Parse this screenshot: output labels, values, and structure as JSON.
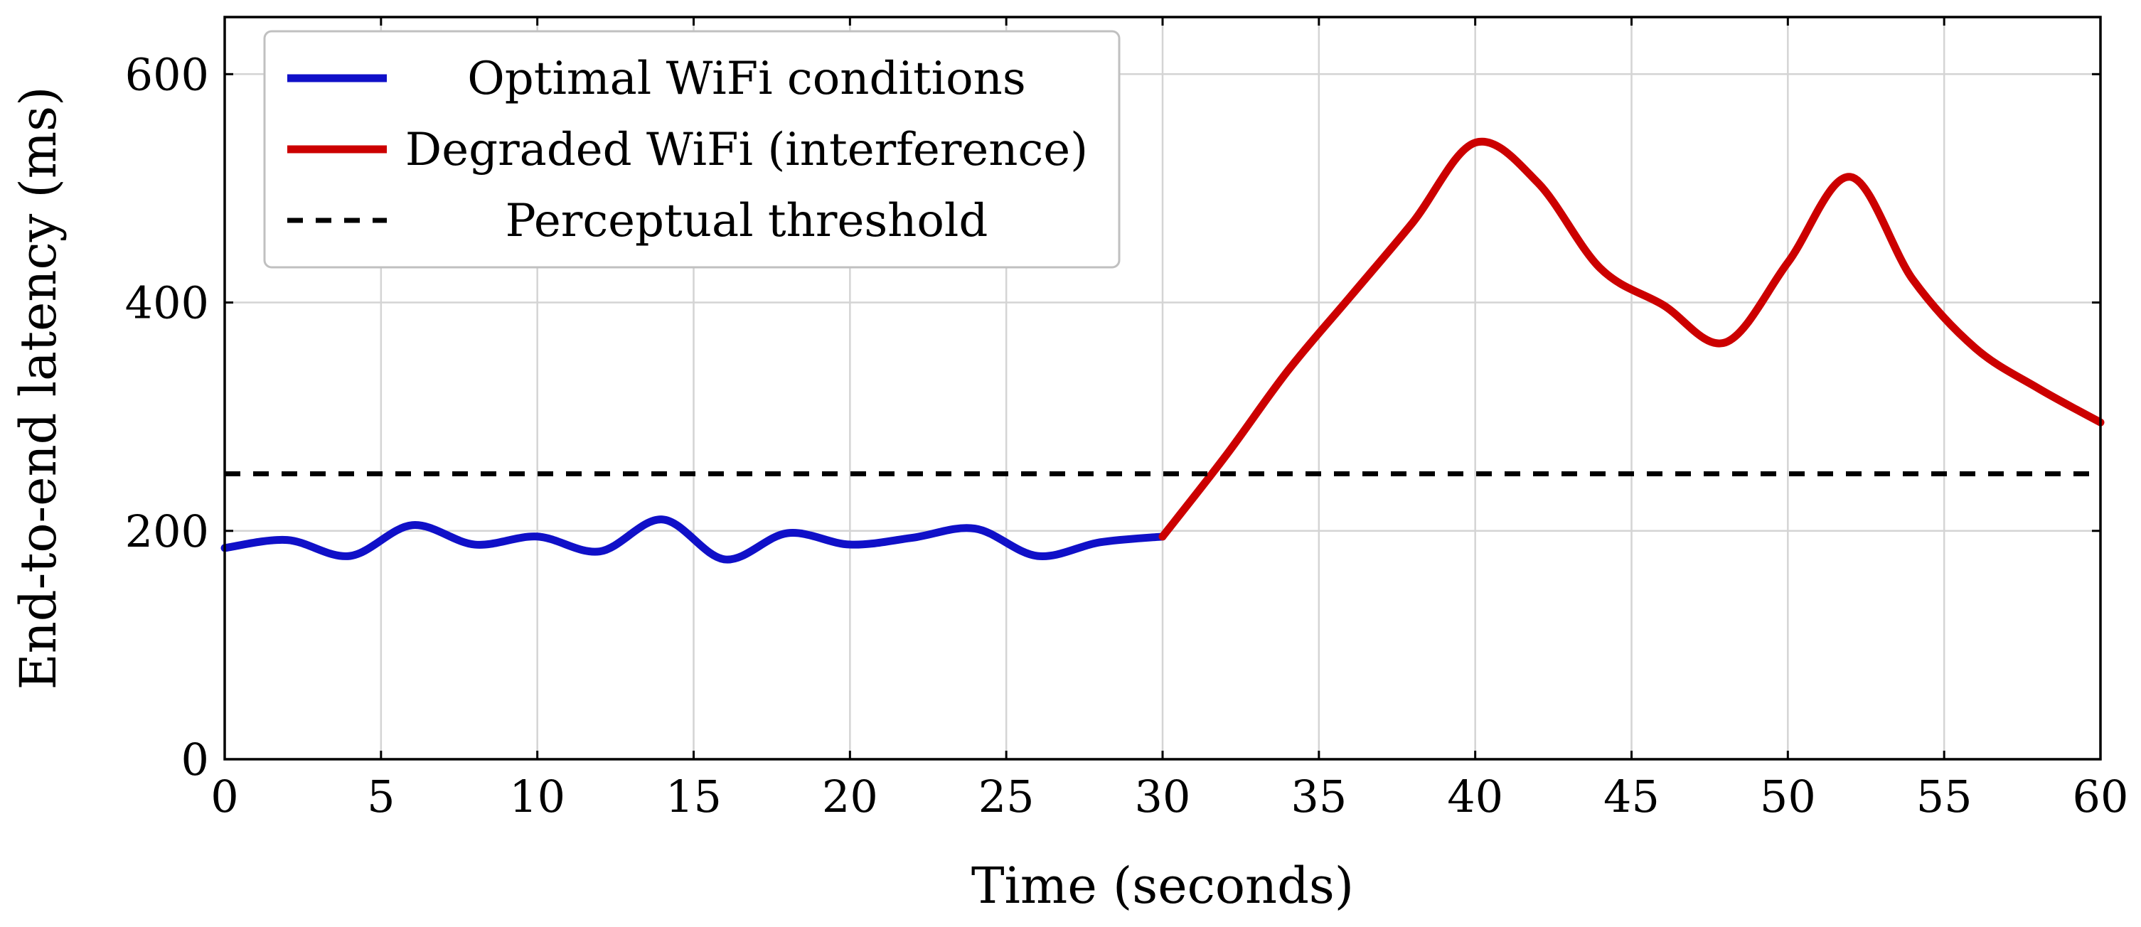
{
  "chart_data": {
    "type": "line",
    "title": "",
    "xlabel": "Time (seconds)",
    "ylabel": "End-to-end latency (ms)",
    "xlim": [
      0,
      60
    ],
    "ylim": [
      0,
      650
    ],
    "xticks": [
      0,
      5,
      10,
      15,
      20,
      25,
      30,
      35,
      40,
      45,
      50,
      55,
      60
    ],
    "yticks": [
      0,
      200,
      400,
      600
    ],
    "grid": true,
    "legend_position": "top-left",
    "series": [
      {
        "name": "Optimal WiFi conditions",
        "color": "#1010c8",
        "style": "solid",
        "x": [
          0,
          2,
          4,
          6,
          8,
          10,
          12,
          14,
          16,
          18,
          20,
          22,
          24,
          26,
          28,
          30
        ],
        "y": [
          185,
          192,
          178,
          205,
          188,
          195,
          182,
          210,
          175,
          198,
          188,
          194,
          202,
          178,
          190,
          195
        ]
      },
      {
        "name": "Degraded WiFi (interference)",
        "color": "#cc0000",
        "style": "solid",
        "x": [
          30,
          32,
          34,
          36,
          38,
          40,
          42,
          44,
          46,
          48,
          50,
          52,
          54,
          56,
          58,
          60
        ],
        "y": [
          195,
          265,
          340,
          405,
          470,
          540,
          505,
          430,
          398,
          365,
          435,
          510,
          420,
          360,
          325,
          295
        ]
      },
      {
        "name": "Perceptual threshold",
        "color": "#000000",
        "style": "dashed",
        "x": [
          0,
          60
        ],
        "y": [
          250,
          250
        ]
      }
    ]
  }
}
